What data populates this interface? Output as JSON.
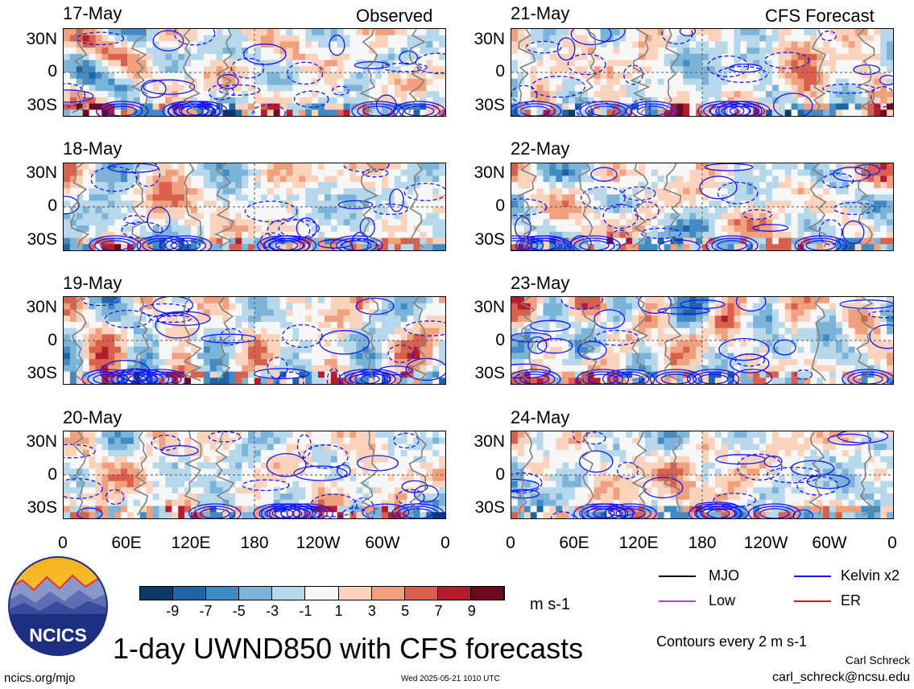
{
  "header": {
    "observed_label": "Observed",
    "forecast_label": "CFS Forecast"
  },
  "chart_data": {
    "type": "heatmap",
    "variable": "UWND850",
    "title": "1-day UWND850 with CFS forecasts",
    "units": "m s-1",
    "x_tick_labels": [
      "0",
      "60E",
      "120E",
      "180",
      "120W",
      "60W",
      "0"
    ],
    "y_tick_labels": [
      "30N",
      "0",
      "30S"
    ],
    "ylim": [
      -40,
      40
    ],
    "grid": "dashed lines at equator and 180",
    "panels": [
      {
        "date": "17-May",
        "kind": "observed",
        "seed": 3
      },
      {
        "date": "18-May",
        "kind": "observed",
        "seed": 7
      },
      {
        "date": "19-May",
        "kind": "observed",
        "seed": 11
      },
      {
        "date": "20-May",
        "kind": "observed",
        "seed": 13
      },
      {
        "date": "21-May",
        "kind": "forecast",
        "seed": 17
      },
      {
        "date": "22-May",
        "kind": "forecast",
        "seed": 19
      },
      {
        "date": "23-May",
        "kind": "forecast",
        "seed": 23
      },
      {
        "date": "24-May",
        "kind": "forecast",
        "seed": 29
      }
    ],
    "colorbar": {
      "labels": [
        "-9",
        "-7",
        "-5",
        "-3",
        "-1",
        "1",
        "3",
        "5",
        "7",
        "9"
      ],
      "colors": [
        "#0c3a63",
        "#1f64a5",
        "#3f8bc4",
        "#7bb4d8",
        "#b7d7ea",
        "#f7f7f7",
        "#fbd3bd",
        "#f1a07d",
        "#d9604c",
        "#b51d2e",
        "#6b0a1e"
      ]
    },
    "legend": [
      {
        "name": "MJO",
        "color": "#000000"
      },
      {
        "name": "Kelvin x2",
        "color": "#1414ff"
      },
      {
        "name": "Low",
        "color": "#b040d0"
      },
      {
        "name": "ER",
        "color": "#e01010"
      }
    ],
    "contour_note": "Contours every 2 m s-1"
  },
  "footer": {
    "site": "ncics.org/mjo",
    "timestamp": "Wed 2025-05-21 1010 UTC",
    "author": "Carl Schreck",
    "email": "carl_schreck@ncsu.edu",
    "logo_text": "NCICS"
  }
}
